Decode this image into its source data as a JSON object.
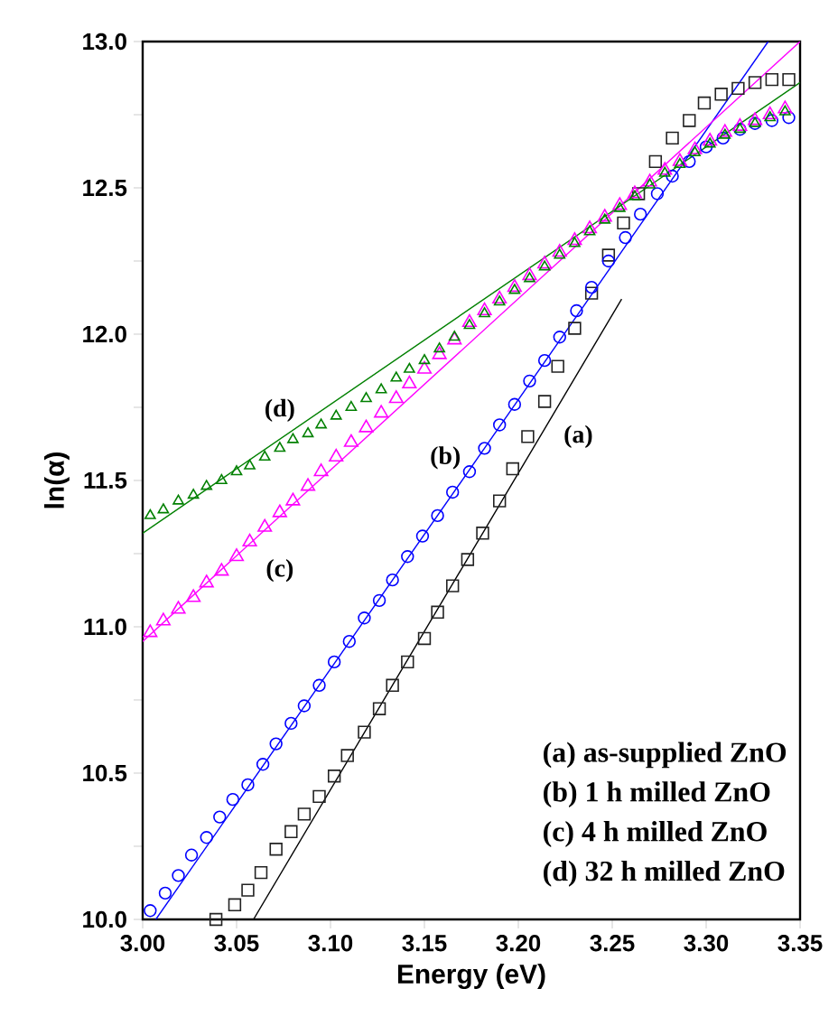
{
  "chart_data": {
    "type": "scatter",
    "xlabel": "Energy (eV)",
    "ylabel": "ln(α)",
    "xlim": [
      3.0,
      3.35
    ],
    "ylim": [
      10.0,
      13.0
    ],
    "xticks": [
      {
        "value": 3.0,
        "label": "3.00"
      },
      {
        "value": 3.05,
        "label": "3.05"
      },
      {
        "value": 3.1,
        "label": "3.10"
      },
      {
        "value": 3.15,
        "label": "3.15"
      },
      {
        "value": 3.2,
        "label": "3.20"
      },
      {
        "value": 3.25,
        "label": "3.25"
      },
      {
        "value": 3.3,
        "label": "3.30"
      },
      {
        "value": 3.35,
        "label": "3.35"
      }
    ],
    "yticks": [
      {
        "value": 10.0,
        "label": "10.0"
      },
      {
        "value": 10.25,
        "label": null
      },
      {
        "value": 10.5,
        "label": "10.5"
      },
      {
        "value": 10.75,
        "label": null
      },
      {
        "value": 11.0,
        "label": "11.0"
      },
      {
        "value": 11.25,
        "label": null
      },
      {
        "value": 11.5,
        "label": "11.5"
      },
      {
        "value": 11.75,
        "label": null
      },
      {
        "value": 12.0,
        "label": "12.0"
      },
      {
        "value": 12.25,
        "label": null
      },
      {
        "value": 12.5,
        "label": "12.5"
      },
      {
        "value": 12.75,
        "label": null
      },
      {
        "value": 13.0,
        "label": "13.0"
      }
    ],
    "grid": false,
    "series": [
      {
        "name": "(a)",
        "marker": "square",
        "color": "#222222",
        "x": [
          3.039,
          3.049,
          3.056,
          3.063,
          3.071,
          3.079,
          3.086,
          3.094,
          3.102,
          3.109,
          3.118,
          3.126,
          3.133,
          3.141,
          3.15,
          3.157,
          3.165,
          3.173,
          3.181,
          3.19,
          3.197,
          3.205,
          3.214,
          3.221,
          3.23,
          3.239,
          3.248,
          3.256,
          3.264,
          3.273,
          3.282,
          3.291,
          3.299,
          3.308,
          3.317,
          3.326,
          3.335,
          3.344
        ],
        "values": [
          10.0,
          10.05,
          10.1,
          10.16,
          10.24,
          10.3,
          10.36,
          10.42,
          10.49,
          10.56,
          10.64,
          10.72,
          10.8,
          10.88,
          10.96,
          11.05,
          11.14,
          11.23,
          11.32,
          11.43,
          11.54,
          11.65,
          11.77,
          11.89,
          12.02,
          12.14,
          12.27,
          12.38,
          12.48,
          12.59,
          12.67,
          12.73,
          12.79,
          12.82,
          12.84,
          12.86,
          12.87,
          12.87
        ]
      },
      {
        "name": "(b)",
        "marker": "circle",
        "color": "#0000ff",
        "x": [
          3.004,
          3.012,
          3.019,
          3.026,
          3.034,
          3.041,
          3.048,
          3.056,
          3.064,
          3.071,
          3.079,
          3.086,
          3.094,
          3.102,
          3.11,
          3.118,
          3.126,
          3.133,
          3.141,
          3.149,
          3.157,
          3.165,
          3.174,
          3.182,
          3.19,
          3.198,
          3.206,
          3.214,
          3.222,
          3.231,
          3.239,
          3.248,
          3.257,
          3.265,
          3.274,
          3.282,
          3.291,
          3.3,
          3.309,
          3.318,
          3.326,
          3.335,
          3.344
        ],
        "values": [
          10.03,
          10.09,
          10.15,
          10.22,
          10.28,
          10.35,
          10.41,
          10.46,
          10.53,
          10.6,
          10.67,
          10.73,
          10.8,
          10.88,
          10.95,
          11.03,
          11.09,
          11.16,
          11.24,
          11.31,
          11.38,
          11.46,
          11.53,
          11.61,
          11.69,
          11.76,
          11.84,
          11.91,
          11.99,
          12.08,
          12.16,
          12.25,
          12.33,
          12.41,
          12.48,
          12.54,
          12.59,
          12.64,
          12.67,
          12.7,
          12.72,
          12.73,
          12.74
        ]
      },
      {
        "name": "(c)",
        "marker": "triangle",
        "color": "#ff00ff",
        "x": [
          3.004,
          3.011,
          3.019,
          3.027,
          3.034,
          3.042,
          3.05,
          3.057,
          3.065,
          3.073,
          3.08,
          3.088,
          3.095,
          3.103,
          3.111,
          3.119,
          3.127,
          3.135,
          3.142,
          3.15,
          3.158,
          3.166,
          3.174,
          3.182,
          3.19,
          3.198,
          3.206,
          3.214,
          3.222,
          3.23,
          3.238,
          3.246,
          3.254,
          3.262,
          3.27,
          3.278,
          3.286,
          3.294,
          3.302,
          3.31,
          3.318,
          3.326,
          3.334,
          3.342
        ],
        "values": [
          10.98,
          11.02,
          11.06,
          11.1,
          11.15,
          11.19,
          11.24,
          11.29,
          11.34,
          11.39,
          11.43,
          11.48,
          11.53,
          11.58,
          11.63,
          11.68,
          11.73,
          11.78,
          11.83,
          11.88,
          11.93,
          11.98,
          12.04,
          12.08,
          12.12,
          12.16,
          12.2,
          12.24,
          12.28,
          12.32,
          12.36,
          12.4,
          12.44,
          12.48,
          12.52,
          12.56,
          12.59,
          12.63,
          12.66,
          12.69,
          12.71,
          12.73,
          12.75,
          12.77
        ]
      },
      {
        "name": "(d)",
        "marker": "triangle",
        "color": "#008000",
        "x": [
          3.004,
          3.011,
          3.019,
          3.027,
          3.034,
          3.042,
          3.05,
          3.057,
          3.065,
          3.073,
          3.08,
          3.088,
          3.095,
          3.103,
          3.111,
          3.119,
          3.127,
          3.135,
          3.142,
          3.15,
          3.158,
          3.166,
          3.174,
          3.182,
          3.19,
          3.198,
          3.206,
          3.214,
          3.222,
          3.23,
          3.238,
          3.246,
          3.254,
          3.262,
          3.27,
          3.278,
          3.286,
          3.294,
          3.302,
          3.31,
          3.318,
          3.326,
          3.334,
          3.342
        ],
        "values": [
          11.38,
          11.4,
          11.43,
          11.45,
          11.48,
          11.5,
          11.53,
          11.55,
          11.58,
          11.61,
          11.64,
          11.66,
          11.69,
          11.72,
          11.75,
          11.78,
          11.81,
          11.85,
          11.88,
          11.91,
          11.95,
          11.99,
          12.03,
          12.07,
          12.11,
          12.15,
          12.19,
          12.23,
          12.27,
          12.31,
          12.35,
          12.39,
          12.43,
          12.47,
          12.51,
          12.55,
          12.58,
          12.62,
          12.65,
          12.68,
          12.7,
          12.72,
          12.74,
          12.76
        ]
      },
      {
        "type": "line",
        "marker": "none",
        "line_style": "solid",
        "color": "#000000",
        "x": [
          3.059,
          3.255
        ],
        "values": [
          10.0,
          12.12
        ]
      },
      {
        "type": "line",
        "marker": "none",
        "line_style": "solid",
        "color": "#0000ff",
        "x": [
          3.007,
          3.333
        ],
        "values": [
          10.0,
          13.0
        ]
      },
      {
        "type": "line",
        "marker": "none",
        "line_style": "solid",
        "color": "#ff00ff",
        "x": [
          3.0,
          3.35
        ],
        "values": [
          10.95,
          13.0
        ]
      },
      {
        "type": "line",
        "marker": "none",
        "line_style": "solid",
        "color": "#008000",
        "x": [
          3.0,
          3.35
        ],
        "values": [
          11.32,
          12.86
        ]
      }
    ],
    "annotations": [
      "(a) as-supplied ZnO",
      "(b) 1 h milled ZnO",
      "(c) 4 h milled ZnO",
      "(d) 32 h milled ZnO"
    ]
  }
}
